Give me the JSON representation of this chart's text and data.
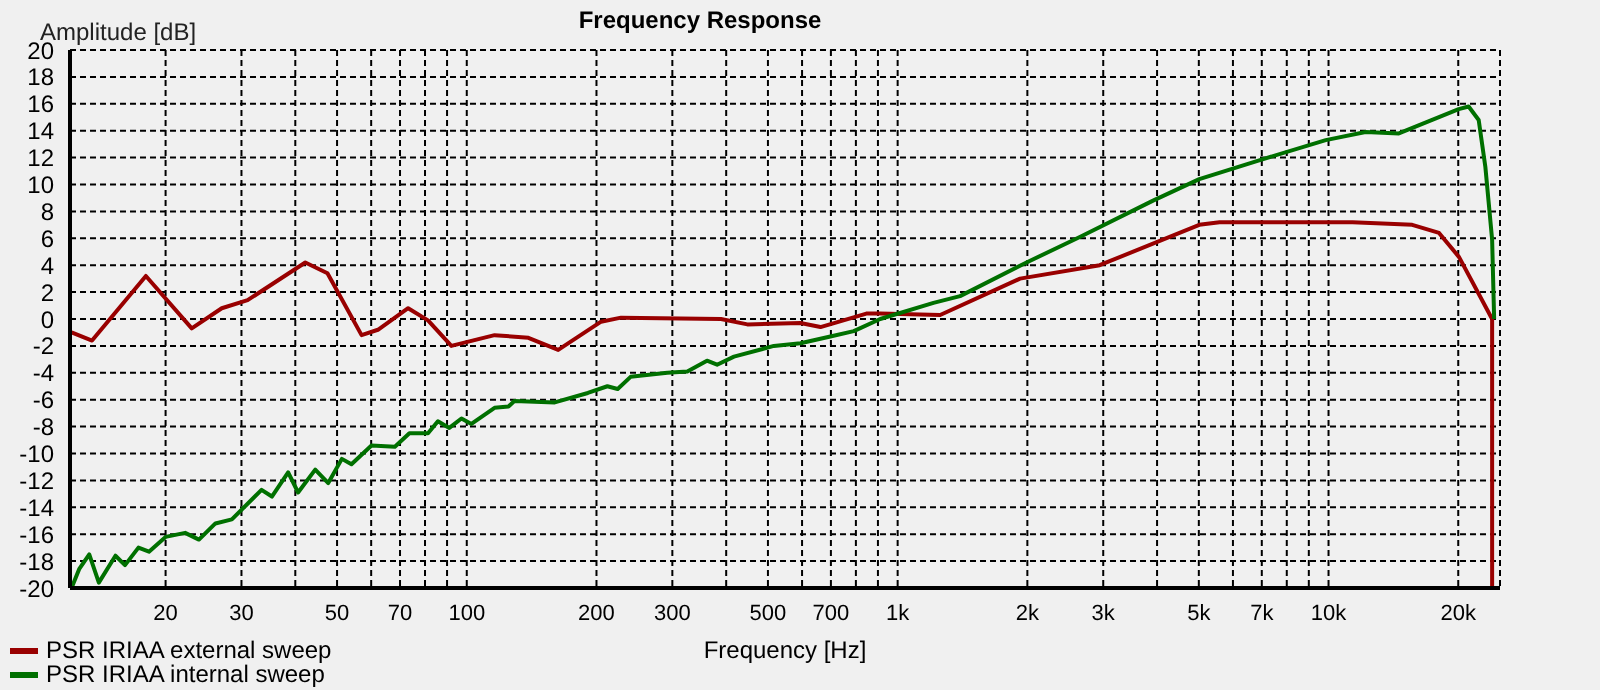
{
  "chart_data": {
    "type": "line",
    "title": "Frequency Response",
    "xlabel": "Frequency [Hz]",
    "ylabel": "Amplitude [dB]",
    "log": "x",
    "grid": true,
    "legend": "bottom left",
    "marker": "none",
    "line_style": "solid",
    "xlim": [
      12,
      25000
    ],
    "ylim": [
      -20,
      20
    ],
    "xticks": [
      20,
      30,
      {
        "value": 40,
        "label": null
      },
      50,
      {
        "value": 60,
        "label": null
      },
      70,
      {
        "value": 80,
        "label": null
      },
      {
        "value": 90,
        "label": null
      },
      100,
      200,
      300,
      {
        "value": 400,
        "label": null
      },
      500,
      {
        "value": 600,
        "label": null
      },
      700,
      {
        "value": 800,
        "label": null
      },
      {
        "value": 900,
        "label": null
      },
      {
        "value": 1000,
        "label": "1k"
      },
      {
        "value": 2000,
        "label": "2k"
      },
      {
        "value": 3000,
        "label": "3k"
      },
      {
        "value": 4000,
        "label": null
      },
      {
        "value": 5000,
        "label": "5k"
      },
      {
        "value": 6000,
        "label": null
      },
      {
        "value": 7000,
        "label": "7k"
      },
      {
        "value": 8000,
        "label": null
      },
      {
        "value": 9000,
        "label": null
      },
      {
        "value": 10000,
        "label": "10k"
      },
      {
        "value": 20000,
        "label": "20k"
      }
    ],
    "yticks": [
      -20,
      -18,
      -16,
      -14,
      -12,
      -10,
      -8,
      -6,
      -4,
      -2,
      0,
      2,
      4,
      6,
      8,
      10,
      12,
      14,
      16,
      18,
      20
    ],
    "series": [
      {
        "name": "PSR IRIAA external sweep",
        "color": "#990000",
        "x": [
          12.1,
          13.5,
          18,
          23,
          27,
          31,
          42.2,
          47.5,
          57,
          62.2,
          73.1,
          81.3,
          92.1,
          116,
          139,
          163,
          205,
          228,
          389,
          448,
          595,
          662,
          846,
          911,
          1255,
          1923,
          2944,
          5012,
          5585,
          11370,
          15640,
          18050,
          20090,
          23970,
          23970
        ],
        "values": [
          -1,
          -1.6,
          3.2,
          -0.7,
          0.8,
          1.4,
          4.2,
          3.4,
          -1.2,
          -0.8,
          0.8,
          -0.1,
          -2,
          -1.2,
          -1.4,
          -2.3,
          -0.2,
          0.1,
          0,
          -0.4,
          -0.3,
          -0.6,
          0.4,
          0.4,
          0.3,
          3,
          4,
          7,
          7.2,
          7.2,
          7,
          6.4,
          4.6,
          0,
          -20
        ]
      },
      {
        "name": "PSR IRIAA internal sweep",
        "color": "#007000",
        "x": [
          12.1,
          12.6,
          13.3,
          14,
          15.3,
          16.1,
          17.3,
          18.3,
          20,
          22.2,
          23.9,
          26.1,
          28.5,
          33.4,
          35.3,
          38.5,
          40.6,
          44.5,
          47.7,
          51.3,
          54,
          60.1,
          68.1,
          73.6,
          81.3,
          85.7,
          91.1,
          97.2,
          102.5,
          116,
          125,
          129,
          160,
          191,
          212,
          224,
          240,
          292,
          325,
          361,
          381,
          417,
          516,
          595,
          698,
          791,
          911,
          1211,
          1396,
          1991,
          2647,
          3915,
          5012,
          6902,
          9851,
          12190,
          14560,
          20050,
          21140,
          22310,
          23120,
          23970,
          24230
        ],
        "values": [
          -20,
          -18.6,
          -17.5,
          -19.6,
          -17.6,
          -18.3,
          -17,
          -17.3,
          -16.2,
          -15.9,
          -16.4,
          -15.2,
          -14.9,
          -12.7,
          -13.2,
          -11.4,
          -12.9,
          -11.2,
          -12.2,
          -10.4,
          -10.8,
          -9.4,
          -9.5,
          -8.5,
          -8.5,
          -7.6,
          -8.1,
          -7.4,
          -7.8,
          -6.6,
          -6.5,
          -6.1,
          -6.2,
          -5.5,
          -5,
          -5.2,
          -4.3,
          -4,
          -3.9,
          -3.1,
          -3.4,
          -2.8,
          -2,
          -1.8,
          -1.3,
          -0.9,
          0,
          1.2,
          1.7,
          4.2,
          6.1,
          8.8,
          10.4,
          11.8,
          13.3,
          13.9,
          13.8,
          15.6,
          15.8,
          14.8,
          11.3,
          5.9,
          0
        ]
      }
    ]
  }
}
